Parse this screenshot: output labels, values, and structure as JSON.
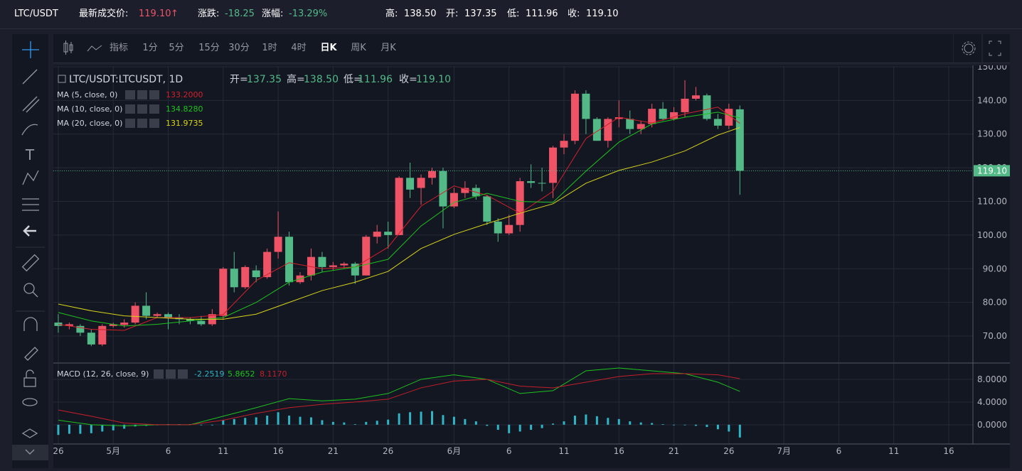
{
  "header": {
    "symbol": "LTC/USDT",
    "last_label": "最新成交价:",
    "last": "119.10",
    "arrow": "↑",
    "change_label": "涨跌:",
    "change": "-18.25",
    "pct_label": "涨幅:",
    "pct": "-13.29%",
    "high_label": "高:",
    "high": "138.50",
    "open_label": "开:",
    "open": "137.35",
    "low_label": "低:",
    "low": "111.96",
    "close_label": "收:",
    "close": "119.10"
  },
  "toolbar": {
    "indicator": "指标",
    "intervals": [
      "1分",
      "5分",
      "15分",
      "30分",
      "1时",
      "4时",
      "日K",
      "周K",
      "月K"
    ]
  },
  "legend": {
    "title": "LTC/USDT:LTCUSDT, 1D",
    "o": "开=",
    "ov": "137.35",
    "h": "高=",
    "hv": "138.50",
    "l": "低=",
    "lv": "111.96",
    "c": "收=",
    "cv": "119.10"
  },
  "chart_data": {
    "type": "candlestick",
    "up_color": "#ef5366",
    "down_color": "#53b987",
    "ohlc": [
      [
        74,
        76.5,
        71,
        73
      ],
      [
        73,
        74,
        72,
        73.5
      ],
      [
        73,
        73.5,
        70,
        71
      ],
      [
        71,
        72,
        67,
        67.5
      ],
      [
        67.5,
        73.5,
        67,
        73
      ],
      [
        73,
        74,
        72.5,
        73.5
      ],
      [
        73.3,
        75,
        72.5,
        74
      ],
      [
        74,
        80,
        73.5,
        79
      ],
      [
        79,
        83,
        75,
        76
      ],
      [
        76,
        77,
        75.5,
        76.5
      ],
      [
        76.5,
        77,
        72,
        75.5
      ],
      [
        75.5,
        76.5,
        73.5,
        75
      ],
      [
        75,
        75.5,
        73.5,
        74.5
      ],
      [
        74.5,
        76,
        73,
        73.5
      ],
      [
        73.5,
        78,
        73,
        76.5
      ],
      [
        76,
        90.5,
        75,
        90
      ],
      [
        90,
        95,
        83,
        84.5
      ],
      [
        84.5,
        91,
        84,
        90.5
      ],
      [
        89.5,
        91,
        86,
        87.5
      ],
      [
        87.5,
        96,
        87,
        95
      ],
      [
        95,
        107,
        93,
        99.5
      ],
      [
        99.5,
        101,
        85,
        86
      ],
      [
        86,
        89,
        85.5,
        88
      ],
      [
        88,
        96,
        86.5,
        93.5
      ],
      [
        93.5,
        95,
        89,
        90.5
      ],
      [
        90.5,
        92,
        89.5,
        91
      ],
      [
        91,
        92,
        90,
        91.5
      ],
      [
        91.5,
        92,
        85.5,
        88
      ],
      [
        88,
        100,
        88,
        99.5
      ],
      [
        99.5,
        103,
        97.5,
        101
      ],
      [
        101,
        104,
        96,
        100
      ],
      [
        100,
        117.5,
        100,
        117
      ],
      [
        117,
        121.5,
        111,
        113.5
      ],
      [
        114,
        118,
        109,
        117
      ],
      [
        117,
        120,
        115,
        119
      ],
      [
        119,
        120,
        102,
        108.5
      ],
      [
        108.5,
        114,
        108,
        112.5
      ],
      [
        112.5,
        116,
        111,
        114
      ],
      [
        114,
        115,
        110.5,
        111.5
      ],
      [
        111.5,
        112,
        103,
        104
      ],
      [
        104,
        105,
        98,
        100.5
      ],
      [
        100.5,
        106,
        100,
        103
      ],
      [
        103,
        117,
        101,
        116
      ],
      [
        116,
        121,
        114,
        115.5
      ],
      [
        115.5,
        120,
        113,
        115.3
      ],
      [
        115.5,
        126.5,
        111,
        126
      ],
      [
        126,
        130,
        124,
        128
      ],
      [
        128,
        143,
        127,
        142
      ],
      [
        142,
        143,
        130,
        134.5
      ],
      [
        134.5,
        135,
        128,
        128
      ],
      [
        128,
        135,
        126,
        134.5
      ],
      [
        134.5,
        140,
        132,
        135
      ],
      [
        134.5,
        137,
        130,
        131.5
      ],
      [
        131.5,
        134,
        130,
        133
      ],
      [
        133,
        139,
        132,
        137.5
      ],
      [
        137.5,
        139.5,
        134,
        134.5
      ],
      [
        134.5,
        138,
        134,
        136.5
      ],
      [
        136.5,
        146,
        135,
        140.5
      ],
      [
        140.5,
        144,
        140,
        141.5
      ],
      [
        141.5,
        142,
        134,
        134.5
      ],
      [
        134.5,
        136,
        131.5,
        132.5
      ],
      [
        132.5,
        139,
        131.5,
        137.5
      ],
      [
        137.35,
        138.5,
        111.96,
        119.1
      ]
    ],
    "ma": [
      {
        "name": "MA (5, close, 0)",
        "last_label": "133.2000",
        "color": "#d3202b",
        "x": [
          0,
          3,
          6,
          9,
          12,
          15,
          18,
          21,
          24,
          27,
          30,
          33,
          36,
          39,
          42,
          45,
          48,
          51,
          54,
          57,
          60,
          62
        ],
        "values": [
          73.5,
          72,
          71.7,
          75.5,
          75.5,
          76.4,
          86.5,
          91.8,
          90,
          90.5,
          96.4,
          108.6,
          114.6,
          111.8,
          106.5,
          113,
          128.7,
          135,
          133.3,
          136,
          138,
          133.2
        ]
      },
      {
        "name": "MA (10, close, 0)",
        "last_label": "134.8280",
        "color": "#1ec21e",
        "x": [
          0,
          3,
          6,
          9,
          12,
          15,
          18,
          21,
          24,
          27,
          30,
          33,
          36,
          39,
          42,
          45,
          48,
          51,
          54,
          57,
          60,
          62
        ],
        "values": [
          77,
          74.5,
          73,
          73.5,
          74.5,
          75.5,
          80,
          86,
          89,
          90.5,
          92.8,
          102.7,
          109.7,
          112.4,
          110,
          109.7,
          119,
          127.6,
          133,
          135,
          136.5,
          134.8
        ]
      },
      {
        "name": "MA (20, close, 0)",
        "last_label": "131.9735",
        "color": "#d8d31a",
        "x": [
          0,
          3,
          6,
          9,
          12,
          15,
          18,
          21,
          24,
          27,
          30,
          33,
          36,
          39,
          42,
          45,
          48,
          51,
          54,
          57,
          60,
          62
        ],
        "values": [
          79.5,
          77.5,
          76,
          75.5,
          75,
          75,
          76.5,
          80,
          83.5,
          86,
          89.2,
          96,
          100.2,
          103.4,
          106.5,
          109.3,
          115.4,
          119.2,
          121.7,
          125,
          129.7,
          131.97
        ]
      }
    ],
    "last_price": {
      "value": 119.1,
      "label": "119.10"
    },
    "xlim": [
      -0.45,
      83.2
    ],
    "xticks": [
      {
        "value": 0,
        "label": "26"
      },
      {
        "value": 5,
        "label": "5月"
      },
      {
        "value": 10,
        "label": "6"
      },
      {
        "value": 15,
        "label": "11"
      },
      {
        "value": 20,
        "label": "16"
      },
      {
        "value": 25,
        "label": "21"
      },
      {
        "value": 30,
        "label": "26"
      },
      {
        "value": 36,
        "label": "6月"
      },
      {
        "value": 41,
        "label": "6"
      },
      {
        "value": 46,
        "label": "11"
      },
      {
        "value": 51,
        "label": "16"
      },
      {
        "value": 56,
        "label": "21"
      },
      {
        "value": 61,
        "label": "26"
      },
      {
        "value": 66,
        "label": "7月"
      },
      {
        "value": 71,
        "label": "6"
      },
      {
        "value": 76,
        "label": "11"
      },
      {
        "value": 81,
        "label": "16"
      }
    ],
    "ylim": [
      62.2,
      150.2
    ],
    "yticks": [
      {
        "value": 150,
        "label": "150.00"
      },
      {
        "value": 140,
        "label": "140.00"
      },
      {
        "value": 130,
        "label": "130.00"
      },
      {
        "value": 120,
        "label": "120.00"
      },
      {
        "value": 110,
        "label": "110.00"
      },
      {
        "value": 100,
        "label": "100.00"
      },
      {
        "value": 90,
        "label": "90.00"
      },
      {
        "value": 80,
        "label": "80.00"
      },
      {
        "value": 70,
        "label": "70.00"
      }
    ],
    "macd": {
      "name": "MACD (12, 26, close, 9)",
      "hist_label": "-2.2519",
      "dif_label": "5.8652",
      "dea_label": "8.1170",
      "hist_color": "#2fb5c6",
      "ylim": [
        -3.4,
        10.75
      ],
      "yticks": [
        {
          "value": 8,
          "label": "8.0000"
        },
        {
          "value": 4,
          "label": "4.0000"
        },
        {
          "value": 0,
          "label": "0.0000"
        }
      ],
      "hist": [
        -1.8,
        -1.6,
        -1.6,
        -1.5,
        -1.2,
        -1,
        -0.7,
        -0.3,
        -0.2,
        -0.1,
        0.1,
        0.1,
        0.1,
        -0.1,
        -0.1,
        0.8,
        1,
        1.2,
        1.3,
        1.6,
        2.2,
        1.6,
        1.4,
        1.3,
        0.8,
        0.5,
        0.4,
        0.1,
        0.5,
        0.7,
        0.9,
        2,
        2.2,
        2.3,
        2.4,
        1.7,
        1.4,
        1,
        0.6,
        -0.2,
        -0.9,
        -1.5,
        -1.2,
        -0.9,
        -0.6,
        0.2,
        0.6,
        1.6,
        1.8,
        1.5,
        1.2,
        1,
        0.6,
        0.4,
        0.3,
        0.1,
        -0.1,
        -0.1,
        -0.2,
        -0.4,
        -0.8,
        -1.2,
        -2.2519
      ],
      "lines": [
        {
          "color": "#1ec21e",
          "x": [
            0,
            3,
            6,
            9,
            12,
            15,
            18,
            21,
            24,
            27,
            30,
            33,
            36,
            39,
            42,
            45,
            48,
            51,
            54,
            57,
            60,
            62
          ],
          "values": [
            0.8,
            0,
            -0.2,
            0,
            0,
            1.5,
            3,
            4.6,
            4.2,
            4.5,
            5.5,
            8,
            8.8,
            8,
            5.5,
            6,
            9.5,
            10,
            9.5,
            9,
            7.5,
            5.87
          ]
        },
        {
          "color": "#c41f2a",
          "x": [
            0,
            3,
            6,
            9,
            12,
            15,
            18,
            21,
            24,
            27,
            30,
            33,
            36,
            39,
            42,
            45,
            48,
            51,
            54,
            57,
            60,
            62
          ],
          "values": [
            2.6,
            1.5,
            0.3,
            0,
            0,
            0.8,
            2,
            3,
            3.6,
            4,
            4.5,
            6.5,
            7.7,
            8,
            6.8,
            6.5,
            7.5,
            8.5,
            9,
            9,
            8.8,
            8.12
          ]
        }
      ]
    }
  }
}
